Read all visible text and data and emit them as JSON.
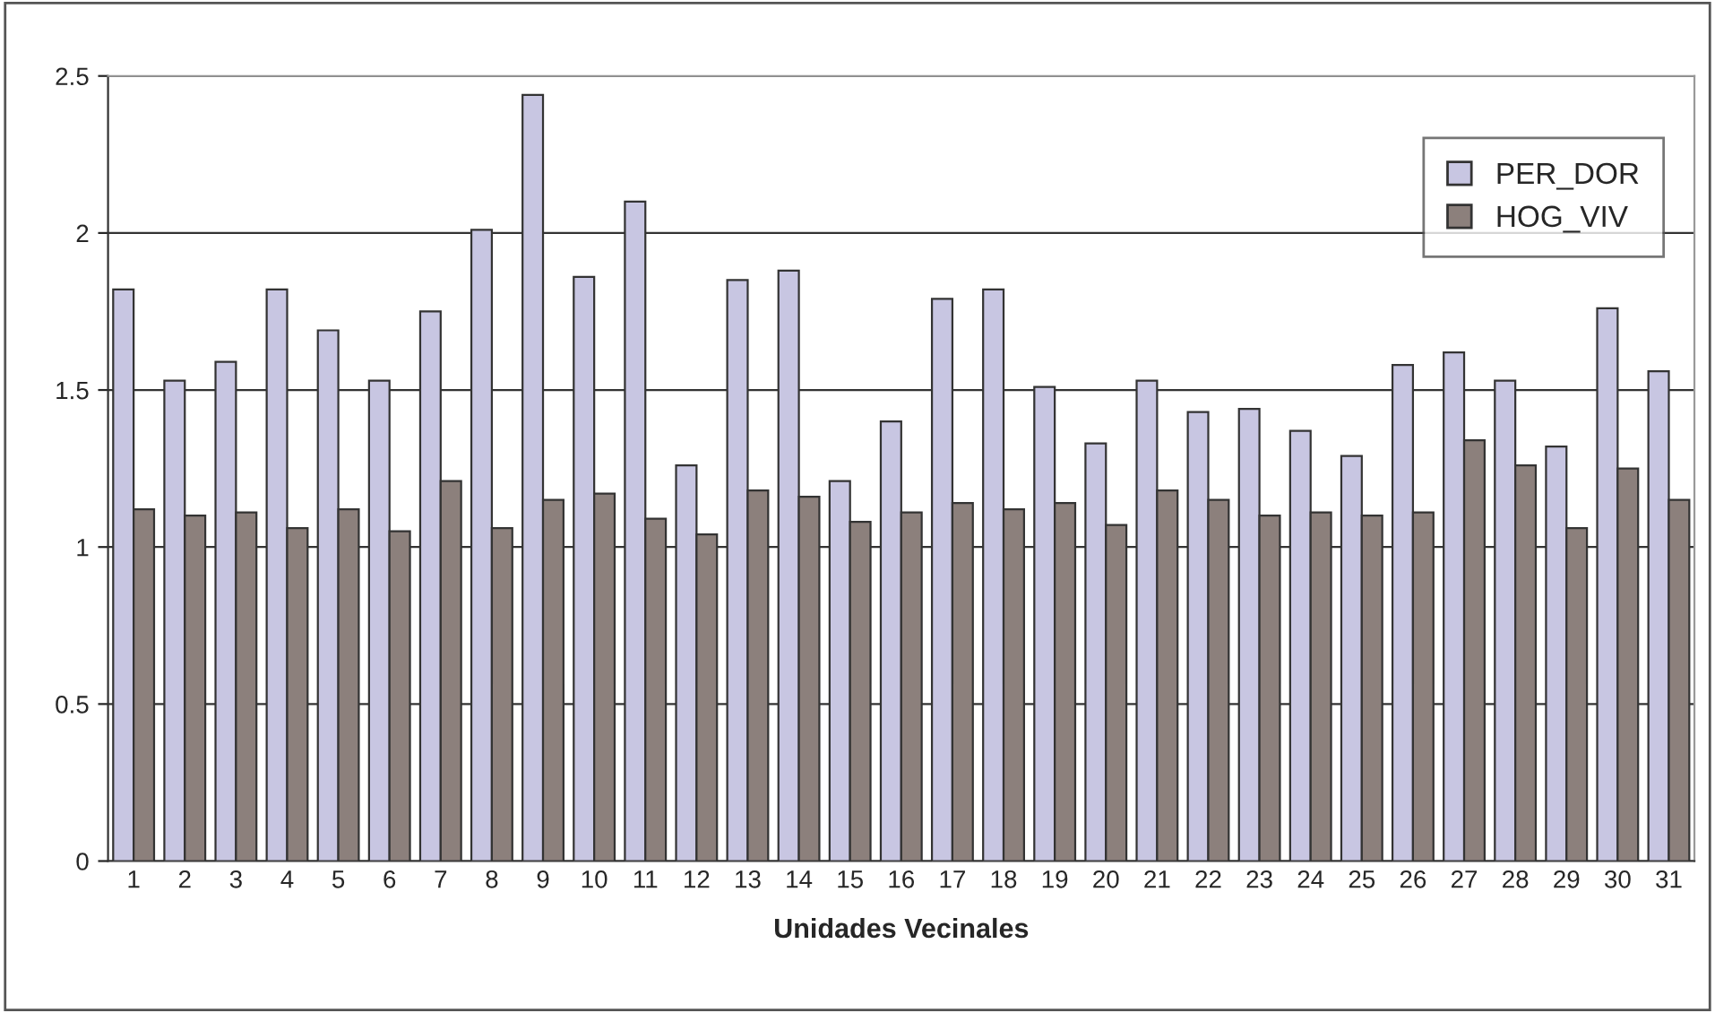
{
  "chart_data": {
    "type": "bar",
    "xlabel": "Unidades Vecinales",
    "categories": [
      "1",
      "2",
      "3",
      "4",
      "5",
      "6",
      "7",
      "8",
      "9",
      "10",
      "11",
      "12",
      "13",
      "14",
      "15",
      "16",
      "17",
      "18",
      "19",
      "20",
      "21",
      "22",
      "23",
      "24",
      "25",
      "26",
      "27",
      "28",
      "29",
      "30",
      "31"
    ],
    "series": [
      {
        "name": "PER_DOR",
        "color": "#c8c6e2",
        "values": [
          1.82,
          1.53,
          1.59,
          1.82,
          1.69,
          1.53,
          1.75,
          2.01,
          2.44,
          1.86,
          2.1,
          1.26,
          1.85,
          1.88,
          1.21,
          1.4,
          1.79,
          1.82,
          1.51,
          1.33,
          1.53,
          1.43,
          1.44,
          1.37,
          1.29,
          1.58,
          1.62,
          1.53,
          1.32,
          1.76,
          1.56
        ]
      },
      {
        "name": "HOG_VIV",
        "color": "#8c807c",
        "values": [
          1.12,
          1.1,
          1.11,
          1.06,
          1.12,
          1.05,
          1.21,
          1.06,
          1.15,
          1.17,
          1.09,
          1.04,
          1.18,
          1.16,
          1.08,
          1.11,
          1.14,
          1.12,
          1.14,
          1.07,
          1.18,
          1.15,
          1.1,
          1.11,
          1.1,
          1.11,
          1.34,
          1.26,
          1.06,
          1.25,
          1.15
        ]
      }
    ],
    "ylim": [
      0,
      2.5
    ],
    "yticks": [
      0,
      0.5,
      1,
      1.5,
      2,
      2.5
    ],
    "grid": "y",
    "legend": "top right"
  }
}
